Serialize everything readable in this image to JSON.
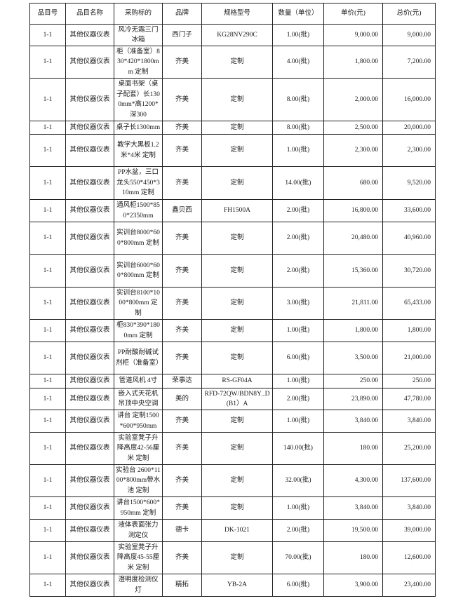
{
  "table": {
    "headers": [
      "品目号",
      "品目名称",
      "采购标的",
      "品牌",
      "规格型号",
      "数量（单位）",
      "单价(元)",
      "总价(元)"
    ],
    "rows": [
      [
        "1-1",
        "其他仪器仪表",
        "风冷无霜三门冰箱",
        "西门子",
        "KG28NV290C",
        "1.00(批)",
        "9,000.00",
        "9,000.00"
      ],
      [
        "1-1",
        "其他仪器仪表",
        "柜（准备室）830*420*1800mm 定制",
        "齐美",
        "定制",
        "4.00(批)",
        "1,800.00",
        "7,200.00"
      ],
      [
        "1-1",
        "其他仪器仪表",
        "桌面书架（桌子配套）长1300mm*高1200*深300",
        "齐美",
        "定制",
        "8.00(批)",
        "2,000.00",
        "16,000.00"
      ],
      [
        "1-1",
        "其他仪器仪表",
        "桌子长1300mm",
        "齐美",
        "定制",
        "8.00(批)",
        "2,500.00",
        "20,000.00"
      ],
      [
        "1-1",
        "其他仪器仪表",
        "教学大黑板1.2米*4米 定制",
        "齐美",
        "定制",
        "1.00(批)",
        "2,300.00",
        "2,300.00"
      ],
      [
        "1-1",
        "其他仪器仪表",
        "PP水盆，三口龙头550*450*310mm 定制",
        "齐美",
        "定制",
        "14.00(批)",
        "680.00",
        "9,520.00"
      ],
      [
        "1-1",
        "其他仪器仪表",
        "通风柜1500*850*2350mm",
        "鑫贝西",
        "FH1500A",
        "2.00(批)",
        "16,800.00",
        "33,600.00"
      ],
      [
        "1-1",
        "其他仪器仪表",
        "实训台8000*600*800mm 定制",
        "齐美",
        "定制",
        "2.00(批)",
        "20,480.00",
        "40,960.00"
      ],
      [
        "1-1",
        "其他仪器仪表",
        "实训台6000*600*800mm 定制",
        "齐美",
        "定制",
        "2.00(批)",
        "15,360.00",
        "30,720.00"
      ],
      [
        "1-1",
        "其他仪器仪表",
        "实训台8100*1000*800mm 定制",
        "齐美",
        "定制",
        "3.00(批)",
        "21,811.00",
        "65,433.00"
      ],
      [
        "1-1",
        "其他仪器仪表",
        "柜830*390*1800mm 定制",
        "齐美",
        "定制",
        "1.00(批)",
        "1,800.00",
        "1,800.00"
      ],
      [
        "1-1",
        "其他仪器仪表",
        "PP耐酸耐碱试剂柜（准备室）",
        "齐美",
        "定制",
        "6.00(批)",
        "3,500.00",
        "21,000.00"
      ],
      [
        "1-1",
        "其他仪器仪表",
        "管道风机 4寸",
        "荣事达",
        "RS-GF04A",
        "1.00(批)",
        "250.00",
        "250.00"
      ],
      [
        "1-1",
        "其他仪器仪表",
        "嵌入式天花机吊顶中央空调",
        "美的",
        "RFD-72QW/BDN8Y_D(B1）A",
        "2.00(批)",
        "23,890.00",
        "47,780.00"
      ],
      [
        "1-1",
        "其他仪器仪表",
        "讲台 定制1500*600*950mm",
        "齐美",
        "定制",
        "1.00(批)",
        "3,840.00",
        "3,840.00"
      ],
      [
        "1-1",
        "其他仪器仪表",
        "实验室凳子升降高度42-56厘米 定制",
        "齐美",
        "定制",
        "140.00(批)",
        "180.00",
        "25,200.00"
      ],
      [
        "1-1",
        "其他仪器仪表",
        "实验台 2600*1100*800mm带水池 定制",
        "齐美",
        "定制",
        "32.00(批)",
        "4,300.00",
        "137,600.00"
      ],
      [
        "1-1",
        "其他仪器仪表",
        "讲台1500*600*950mm 定制",
        "齐美",
        "定制",
        "1.00(批)",
        "3,840.00",
        "3,840.00"
      ],
      [
        "1-1",
        "其他仪器仪表",
        "液体表面张力测定仪",
        "德卡",
        "DK-1021",
        "2.00(批)",
        "19,500.00",
        "39,000.00"
      ],
      [
        "1-1",
        "其他仪器仪表",
        "实验室凳子升降高度45-55厘米 定制",
        "齐美",
        "定制",
        "70.00(批)",
        "180.00",
        "12,600.00"
      ],
      [
        "1-1",
        "其他仪器仪表",
        "澄明度检测仪灯",
        "精拓",
        "YB-2A",
        "6.00(批)",
        "3,900.00",
        "23,400.00"
      ]
    ]
  }
}
